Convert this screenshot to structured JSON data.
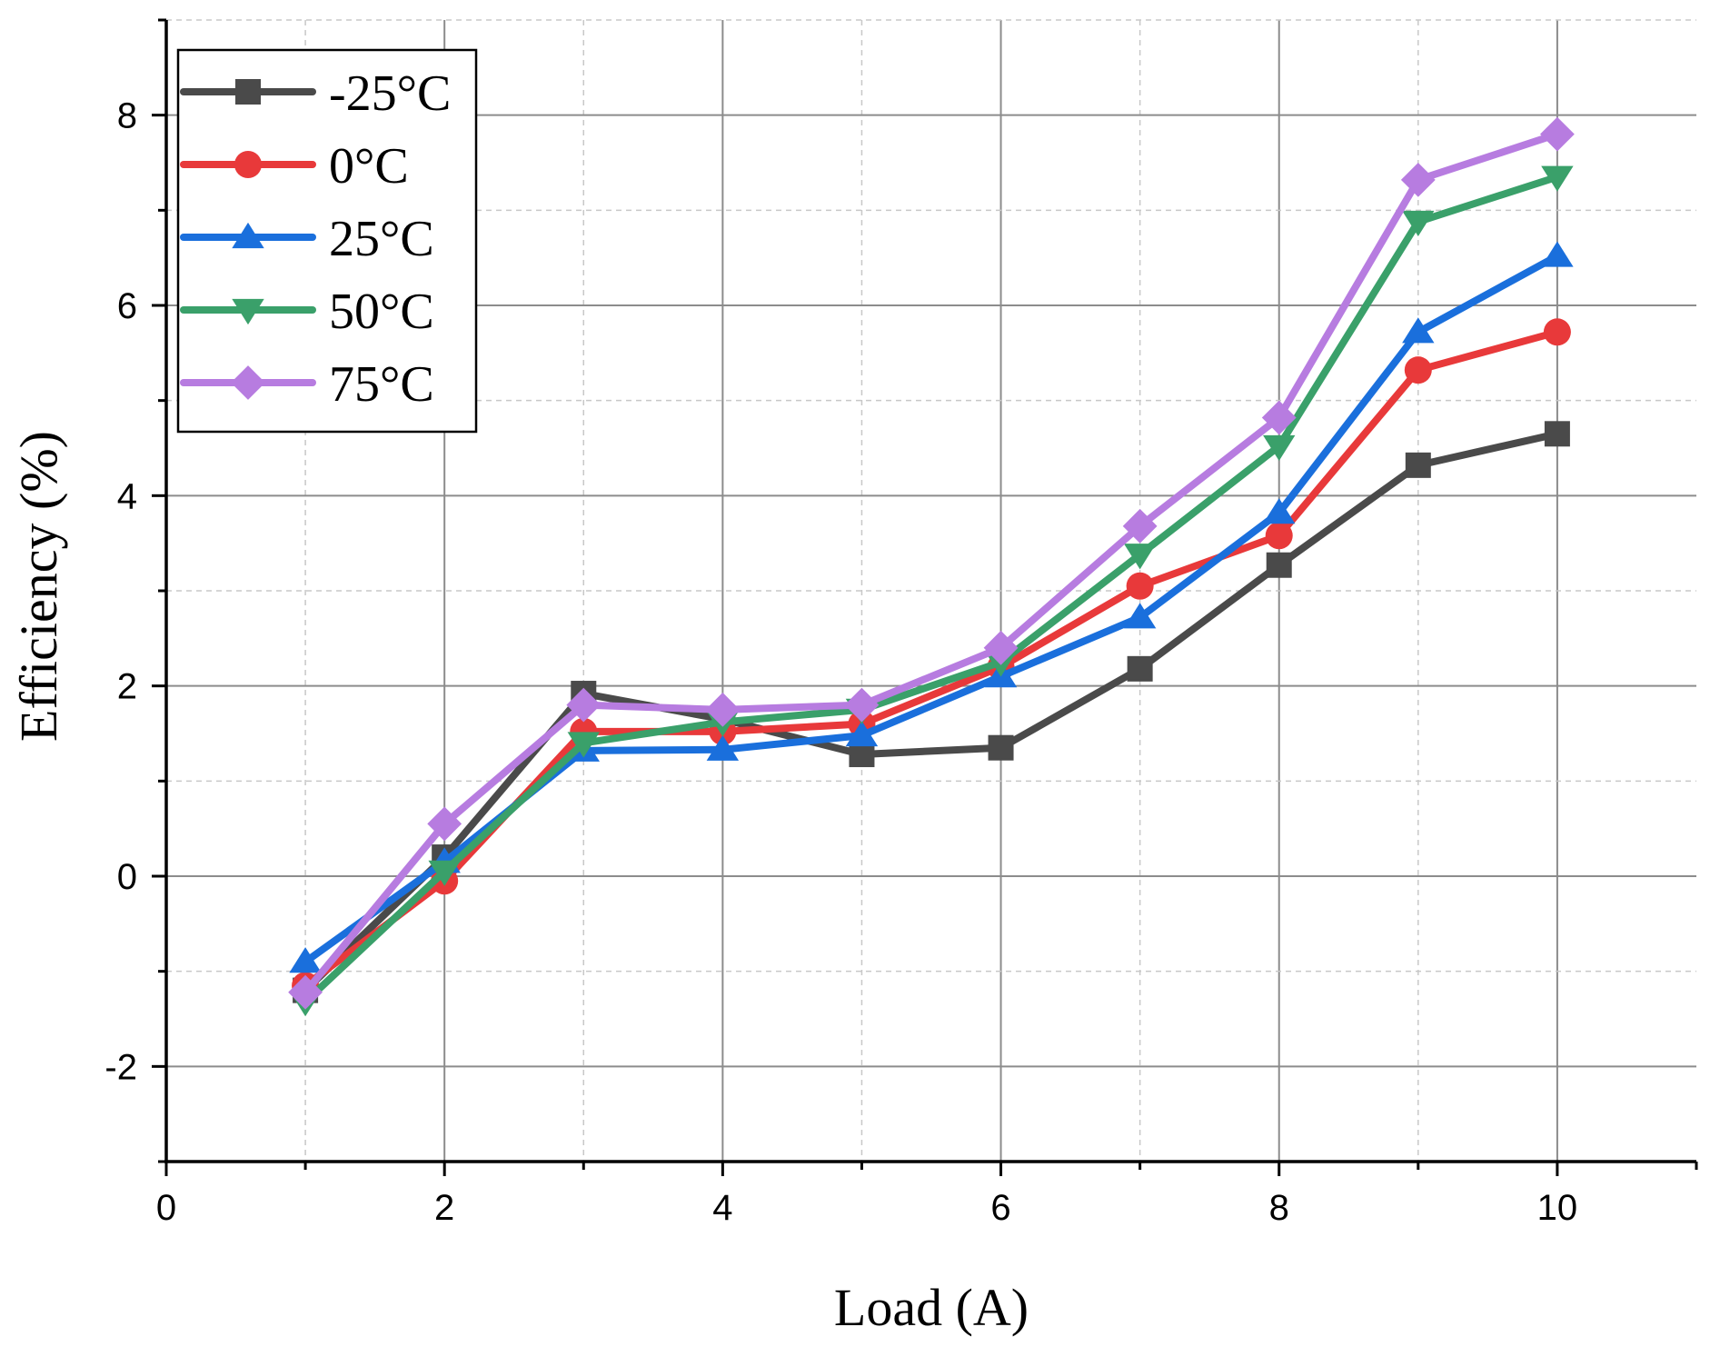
{
  "chart_data": {
    "type": "line",
    "title": "",
    "xlabel": "Load (A)",
    "ylabel": "Efficiency (%)",
    "xlim": [
      0,
      11
    ],
    "ylim": [
      -3,
      9
    ],
    "xticks": [
      0,
      2,
      4,
      6,
      8,
      10
    ],
    "xtick_labels": [
      "0",
      "2",
      "4",
      "6",
      "8",
      "10"
    ],
    "yticks": [
      -2,
      0,
      2,
      4,
      6,
      8
    ],
    "ytick_labels": [
      "-2",
      "0",
      "2",
      "4",
      "6",
      "8"
    ],
    "grid": true,
    "legend_position": "top-left",
    "x": [
      1,
      2,
      3,
      4,
      5,
      6,
      7,
      8,
      9,
      10
    ],
    "series": [
      {
        "name": "-25°C",
        "color": "#4a4a4a",
        "marker": "square",
        "values": [
          -1.2,
          0.2,
          1.92,
          1.65,
          1.28,
          1.35,
          2.18,
          3.27,
          4.32,
          4.65
        ]
      },
      {
        "name": "0°C",
        "color": "#e8393a",
        "marker": "circle",
        "values": [
          -1.15,
          -0.05,
          1.52,
          1.52,
          1.6,
          2.2,
          3.05,
          3.58,
          5.32,
          5.72
        ]
      },
      {
        "name": "25°C",
        "color": "#1a6fdc",
        "marker": "triangle-up",
        "values": [
          -0.9,
          0.15,
          1.32,
          1.33,
          1.48,
          2.1,
          2.72,
          3.82,
          5.72,
          6.52
        ]
      },
      {
        "name": "50°C",
        "color": "#3aa06a",
        "marker": "triangle-down",
        "values": [
          -1.32,
          0.05,
          1.4,
          1.62,
          1.75,
          2.25,
          3.38,
          4.52,
          6.88,
          7.35
        ]
      },
      {
        "name": "75°C",
        "color": "#b77ce0",
        "marker": "diamond",
        "values": [
          -1.22,
          0.55,
          1.8,
          1.75,
          1.8,
          2.4,
          3.68,
          4.82,
          7.32,
          7.8
        ]
      }
    ]
  }
}
